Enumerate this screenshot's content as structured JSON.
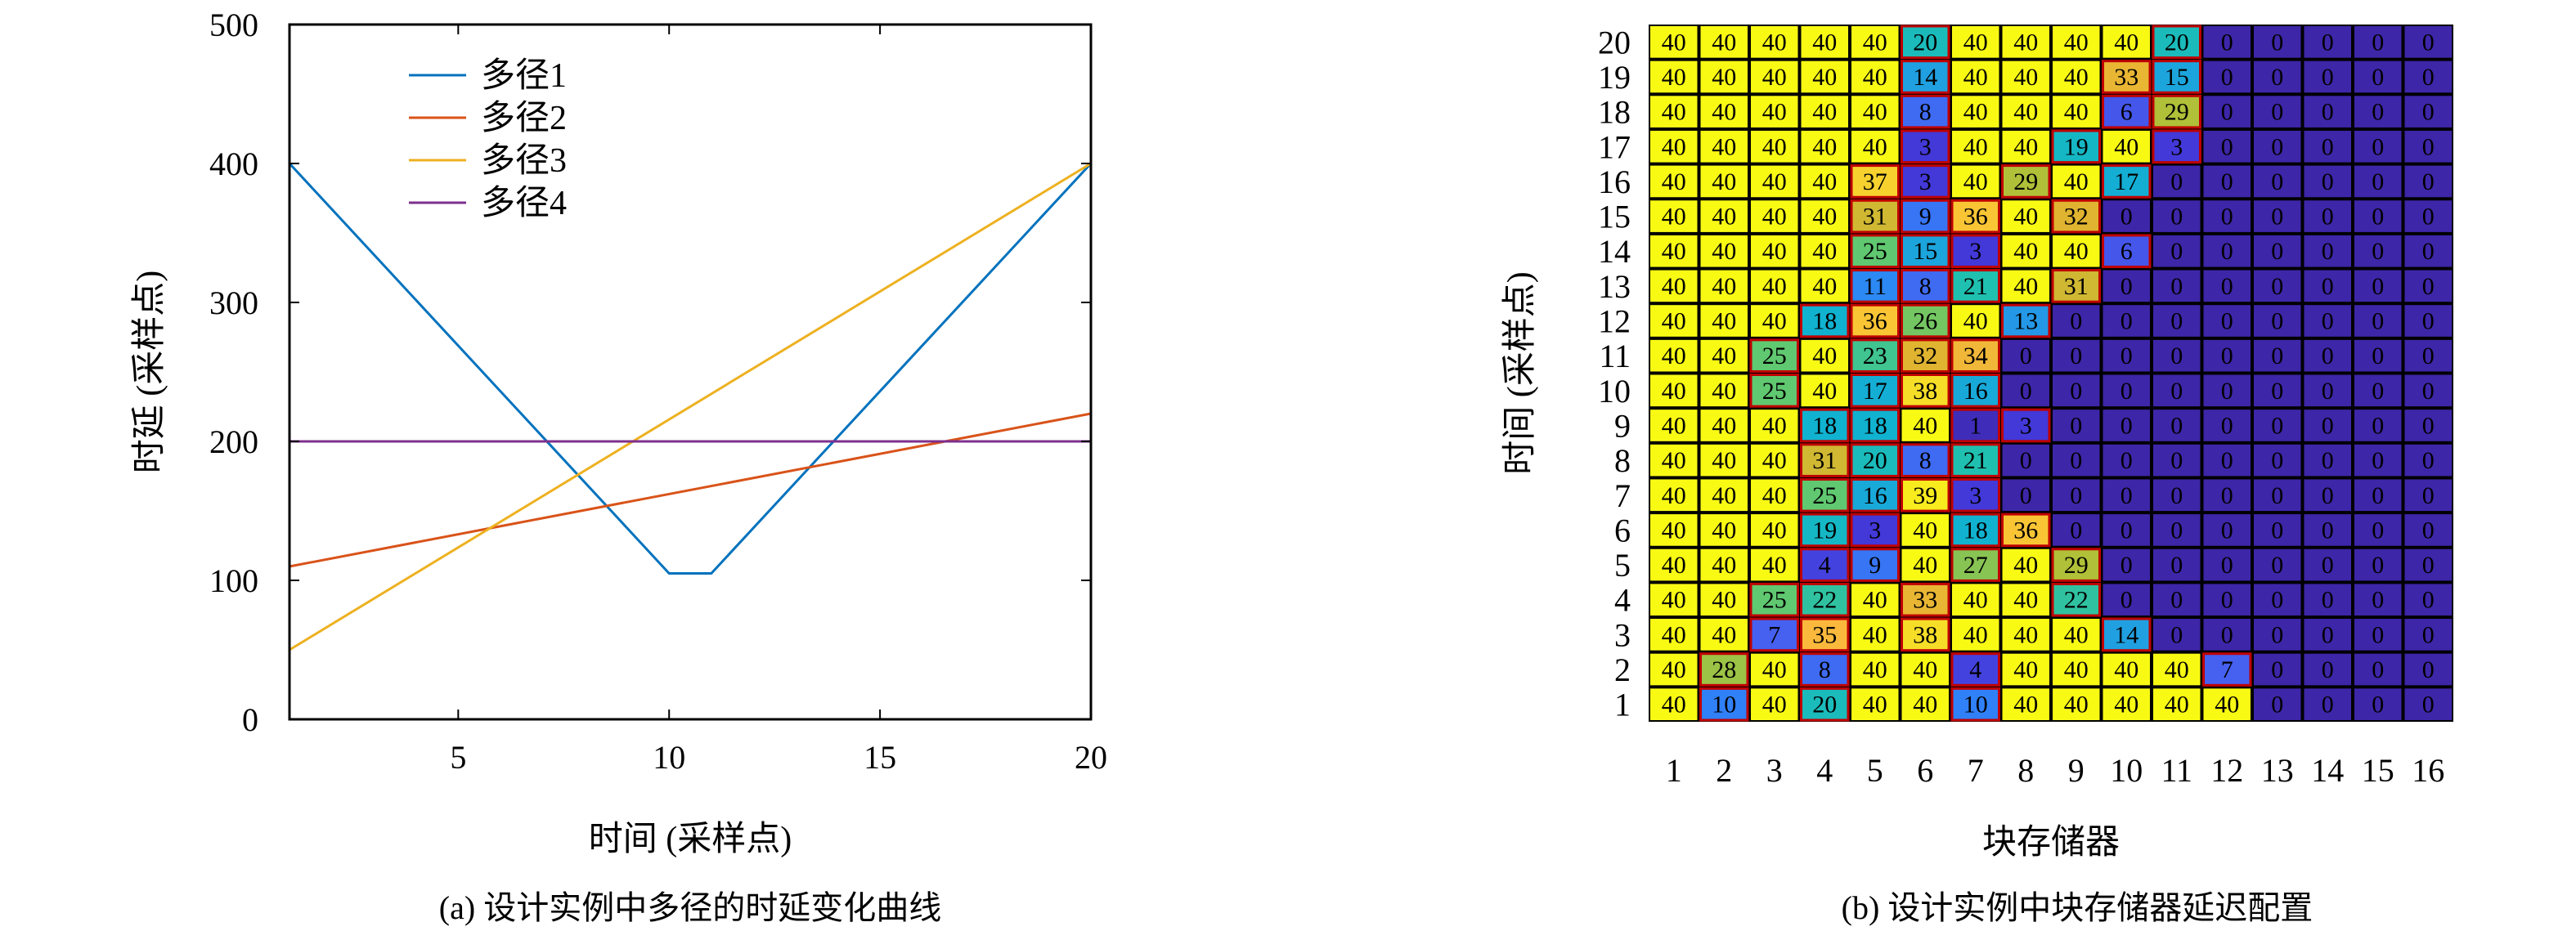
{
  "chart_data": [
    {
      "type": "line",
      "caption": "(a) 设计实例中多径的时延变化曲线",
      "xlabel": "时间 (采样点)",
      "ylabel": "时延 (采样点)",
      "xlim": [
        1,
        20
      ],
      "ylim": [
        0,
        500
      ],
      "xticks": [
        5,
        10,
        15,
        20
      ],
      "yticks": [
        0,
        100,
        200,
        300,
        400,
        500
      ],
      "grid": false,
      "legend_position": "top-left",
      "series": [
        {
          "name": "多径1",
          "color": "#0072bd",
          "points": [
            [
              1,
              400
            ],
            [
              10,
              105
            ],
            [
              11,
              105
            ],
            [
              20,
              400
            ]
          ]
        },
        {
          "name": "多径2",
          "color": "#d95319",
          "points": [
            [
              1,
              110
            ],
            [
              20,
              220
            ]
          ]
        },
        {
          "name": "多径3",
          "color": "#edb120",
          "points": [
            [
              1,
              50
            ],
            [
              20,
              400
            ]
          ]
        },
        {
          "name": "多径4",
          "color": "#7e2f8e",
          "points": [
            [
              1,
              200
            ],
            [
              20,
              200
            ]
          ]
        }
      ]
    },
    {
      "type": "heatmap",
      "caption": "(b) 设计实例中块存储器延迟配置",
      "xlabel": "块存储器",
      "ylabel": "时间 (采样点)",
      "x_categories": [
        "1",
        "2",
        "3",
        "4",
        "5",
        "6",
        "7",
        "8",
        "9",
        "10",
        "11",
        "12",
        "13",
        "14",
        "15",
        "16"
      ],
      "y_categories_top_to_bottom": [
        "20",
        "19",
        "18",
        "17",
        "16",
        "15",
        "14",
        "13",
        "12",
        "11",
        "10",
        "9",
        "8",
        "7",
        "6",
        "5",
        "4",
        "3",
        "2",
        "1"
      ],
      "value_range": [
        0,
        40
      ],
      "colormap": "parula",
      "rows_top_to_bottom": [
        [
          40,
          40,
          40,
          40,
          40,
          20,
          40,
          40,
          40,
          40,
          20,
          0,
          0,
          0,
          0,
          0
        ],
        [
          40,
          40,
          40,
          40,
          40,
          14,
          40,
          40,
          40,
          33,
          15,
          0,
          0,
          0,
          0,
          0
        ],
        [
          40,
          40,
          40,
          40,
          40,
          8,
          40,
          40,
          40,
          6,
          29,
          0,
          0,
          0,
          0,
          0
        ],
        [
          40,
          40,
          40,
          40,
          40,
          3,
          40,
          40,
          19,
          40,
          3,
          0,
          0,
          0,
          0,
          0
        ],
        [
          40,
          40,
          40,
          40,
          37,
          3,
          40,
          29,
          40,
          17,
          0,
          0,
          0,
          0,
          0,
          0
        ],
        [
          40,
          40,
          40,
          40,
          31,
          9,
          36,
          40,
          32,
          0,
          0,
          0,
          0,
          0,
          0,
          0
        ],
        [
          40,
          40,
          40,
          40,
          25,
          15,
          3,
          40,
          40,
          6,
          0,
          0,
          0,
          0,
          0,
          0
        ],
        [
          40,
          40,
          40,
          40,
          11,
          8,
          21,
          40,
          31,
          0,
          0,
          0,
          0,
          0,
          0,
          0
        ],
        [
          40,
          40,
          40,
          18,
          36,
          26,
          40,
          13,
          0,
          0,
          0,
          0,
          0,
          0,
          0,
          0
        ],
        [
          40,
          40,
          25,
          40,
          23,
          32,
          34,
          0,
          0,
          0,
          0,
          0,
          0,
          0,
          0,
          0
        ],
        [
          40,
          40,
          25,
          40,
          17,
          38,
          16,
          0,
          0,
          0,
          0,
          0,
          0,
          0,
          0,
          0
        ],
        [
          40,
          40,
          40,
          18,
          18,
          40,
          1,
          3,
          0,
          0,
          0,
          0,
          0,
          0,
          0,
          0
        ],
        [
          40,
          40,
          40,
          31,
          20,
          8,
          21,
          0,
          0,
          0,
          0,
          0,
          0,
          0,
          0,
          0
        ],
        [
          40,
          40,
          40,
          25,
          16,
          39,
          3,
          0,
          0,
          0,
          0,
          0,
          0,
          0,
          0,
          0
        ],
        [
          40,
          40,
          40,
          19,
          3,
          40,
          18,
          36,
          0,
          0,
          0,
          0,
          0,
          0,
          0,
          0
        ],
        [
          40,
          40,
          40,
          4,
          9,
          40,
          27,
          40,
          29,
          0,
          0,
          0,
          0,
          0,
          0,
          0
        ],
        [
          40,
          40,
          25,
          22,
          40,
          33,
          40,
          40,
          22,
          0,
          0,
          0,
          0,
          0,
          0,
          0
        ],
        [
          40,
          40,
          7,
          35,
          40,
          38,
          40,
          40,
          40,
          14,
          0,
          0,
          0,
          0,
          0,
          0
        ],
        [
          40,
          28,
          40,
          8,
          40,
          40,
          4,
          40,
          40,
          40,
          40,
          7,
          0,
          0,
          0,
          0
        ],
        [
          40,
          10,
          40,
          20,
          40,
          40,
          10,
          40,
          40,
          40,
          40,
          40,
          0,
          0,
          0,
          0
        ]
      ]
    }
  ]
}
